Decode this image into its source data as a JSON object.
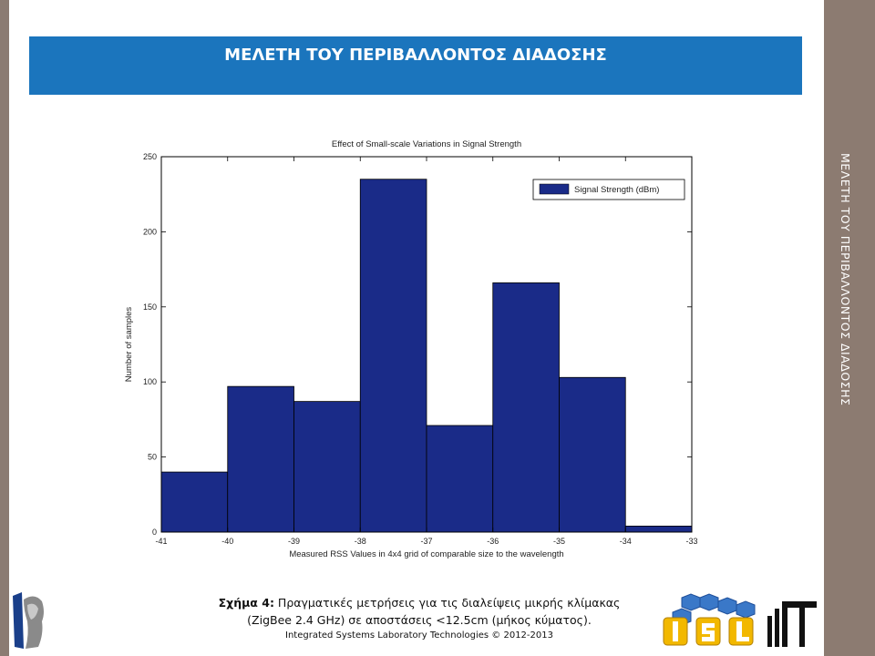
{
  "slide": {
    "title": "ΜΕΛΕΤΗ ΤΟΥ ΠΕΡΙΒΑΛΛΟΝΤΟΣ ΔΙΑΔΟΣΗΣ",
    "side_title": "ΜΕΛΕΤΗ ΤΟΥ ΠΕΡΙΒΑΛΛΟΝΤΟΣ ΔΙΑΔΟΣΗΣ",
    "caption_label": "Σχήμα 4:",
    "caption_text": " Πραγματικές μετρήσεις για τις διαλείψεις  μικρής κλίμακας",
    "caption_line2": "(ZigBee 2.4 GHz) σε αποστάσεις <12.5cm (μήκος κύματος).",
    "caption_line3": "Integrated Systems Laboratory Technologies © 2012-2013",
    "colors": {
      "title_bar": "#1b75bd",
      "side_strip": "#8c7b71",
      "bar_fill": "#1a2b88"
    }
  },
  "chart_data": {
    "type": "bar",
    "title": "Effect of Small-scale Variations in Signal Strength",
    "xlabel": "Measured RSS Values in 4x4 grid of comparable size to the wavelength",
    "ylabel": "Number of samples",
    "legend": {
      "entries": [
        "Signal Strength (dBm)"
      ],
      "placement": "top-right"
    },
    "xlim": [
      -41,
      -33
    ],
    "ylim": [
      0,
      250
    ],
    "xticks": [
      -41,
      -40,
      -39,
      -38,
      -37,
      -36,
      -35,
      -34,
      -33
    ],
    "yticks": [
      0,
      50,
      100,
      150,
      200,
      250
    ],
    "bin_edges": [
      -41,
      -40,
      -39,
      -38,
      -37,
      -36,
      -35,
      -34,
      -33
    ],
    "series": [
      {
        "name": "Signal Strength (dBm)",
        "values": [
          40,
          97,
          87,
          235,
          71,
          166,
          103,
          4
        ]
      }
    ],
    "grid": false
  }
}
